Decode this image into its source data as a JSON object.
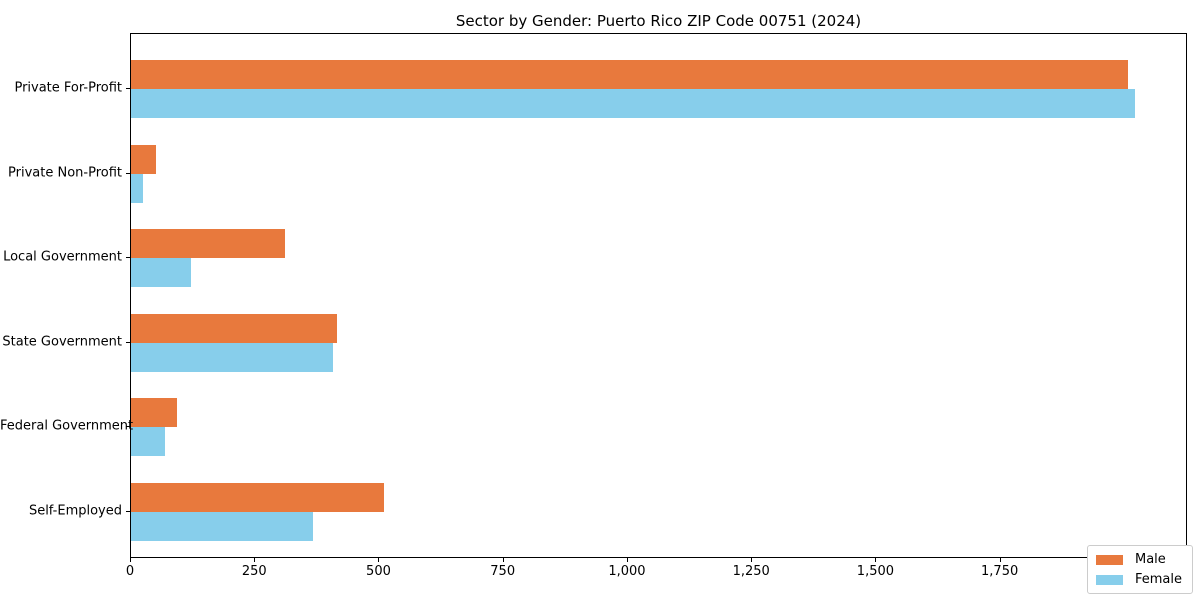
{
  "chart_data": {
    "type": "bar",
    "orientation": "horizontal",
    "title": "Sector by Gender: Puerto Rico ZIP Code 00751 (2024)",
    "categories": [
      "Private For-Profit",
      "Private Non-Profit",
      "Local Government",
      "State Government",
      "Federal Government",
      "Self-Employed"
    ],
    "series": [
      {
        "name": "Male",
        "color": "#e8793d",
        "values": [
          2006,
          50,
          310,
          414,
          93,
          510
        ]
      },
      {
        "name": "Female",
        "color": "#87ceeb",
        "values": [
          2020,
          24,
          121,
          406,
          68,
          366
        ]
      }
    ],
    "xlabel": "",
    "ylabel": "",
    "xlim": [
      0,
      2123
    ],
    "x_ticks": [
      0,
      250,
      500,
      750,
      1000,
      1250,
      1500,
      1750,
      2000
    ],
    "x_tick_labels": [
      "0",
      "250",
      "500",
      "750",
      "1,000",
      "1,250",
      "1,500",
      "1,750",
      "2,000"
    ],
    "legend": {
      "position": "lower right",
      "entries": [
        "Male",
        "Female"
      ]
    },
    "grid": false,
    "plot_background": "#ffffff",
    "spine_color": "#000000"
  }
}
